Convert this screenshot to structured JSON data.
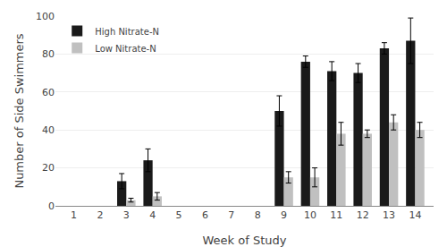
{
  "chart_data": {
    "type": "bar",
    "x": [
      3,
      4,
      9,
      10,
      11,
      12,
      13,
      14
    ],
    "series": [
      {
        "name": "High Nitrate-N",
        "color": "#1a1a1a",
        "values": [
          13,
          24,
          50,
          76,
          71,
          70,
          83,
          87
        ],
        "error": [
          4,
          6,
          8,
          3,
          5,
          5,
          3,
          12
        ]
      },
      {
        "name": "Low Nitrate-N",
        "color": "#c0c0c0",
        "values": [
          3,
          5,
          15,
          15,
          38,
          38,
          44,
          40
        ],
        "error": [
          1,
          2,
          3,
          5,
          6,
          2,
          4,
          4
        ]
      }
    ],
    "xlabel": "Week of Study",
    "ylabel": "Number of Side Swimmers",
    "xlim": [
      0.3,
      14.7
    ],
    "xticks": [
      1,
      2,
      3,
      4,
      5,
      6,
      7,
      8,
      9,
      10,
      11,
      12,
      13,
      14
    ],
    "ylim": [
      0,
      100
    ],
    "yticks": [
      0,
      20,
      40,
      60,
      80,
      100
    ],
    "grid": true,
    "legend": "upper left"
  }
}
